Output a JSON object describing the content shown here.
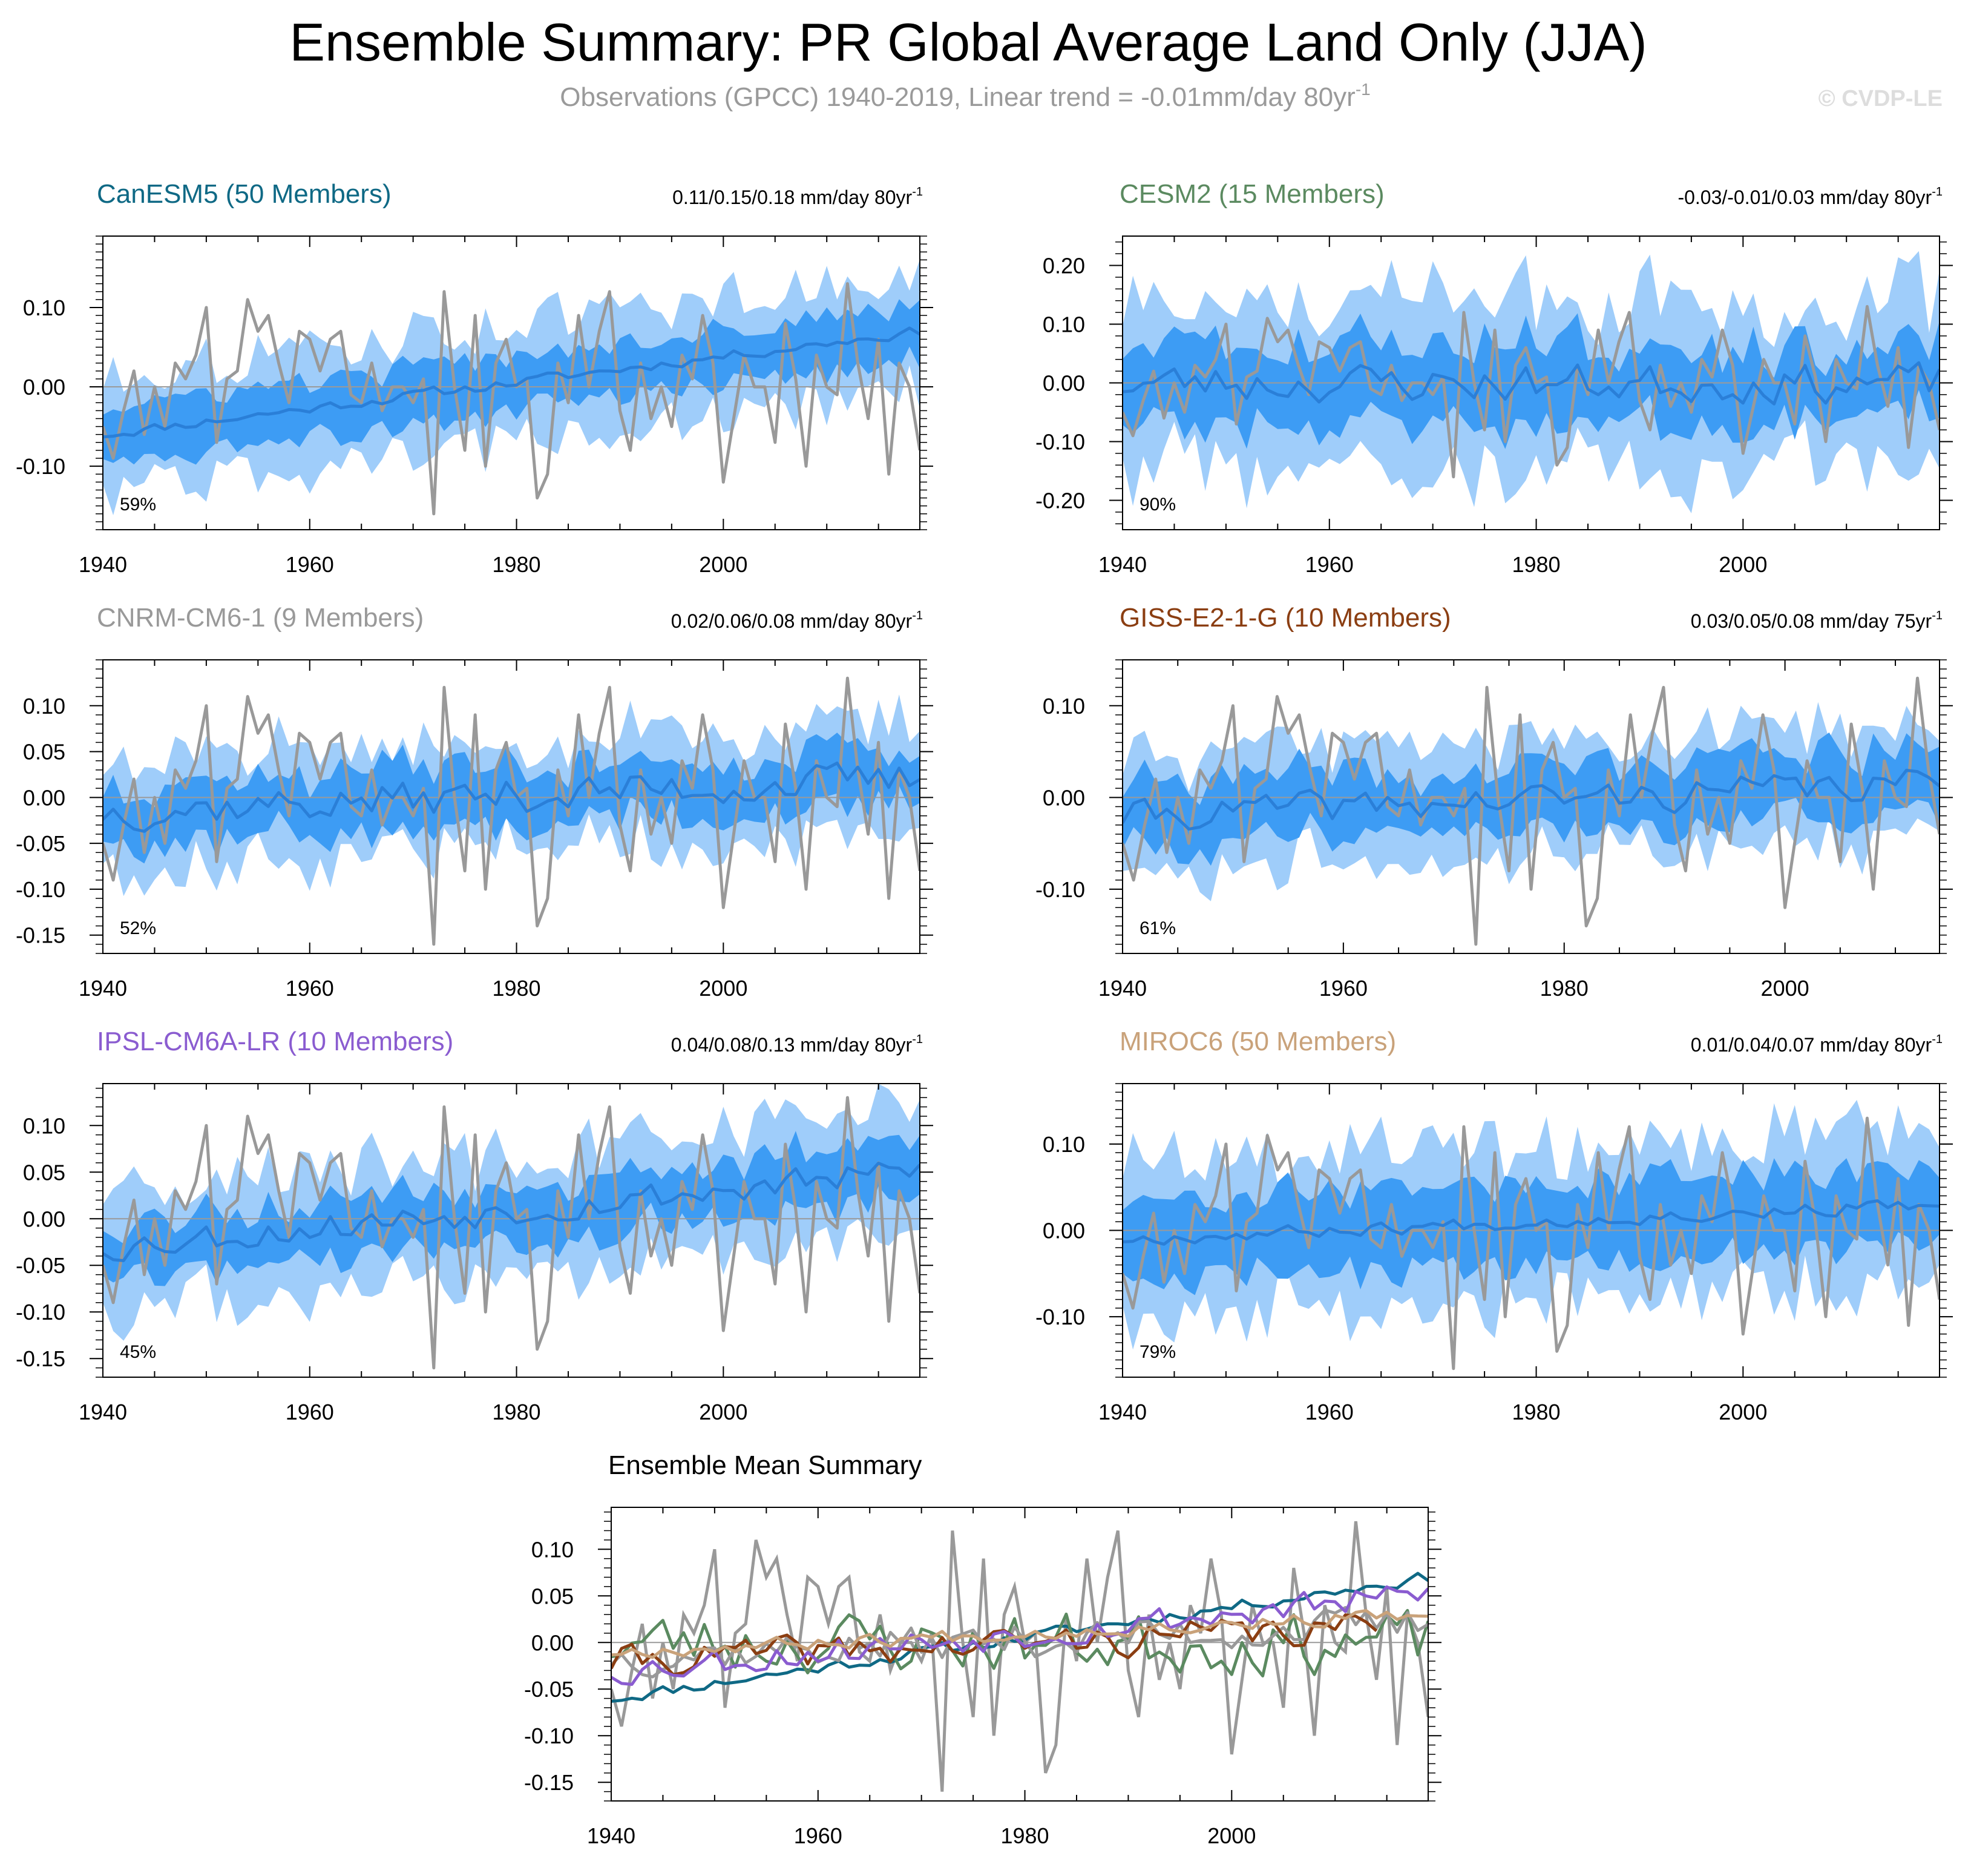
{
  "page": {
    "title": "Ensemble Summary: PR Global Average Land Only (JJA)",
    "subtitle_main": "Observations (GPCC) 1940-2019, Linear trend = -0.01mm/day 80yr",
    "subtitle_sup": "-1",
    "watermark": "© CVDP-LE"
  },
  "style": {
    "title_color": "#000000",
    "subtitle_color": "#9a9a9a",
    "watermark_color": "#dddddd",
    "obs_color": "#999999",
    "spread_outer_color": "#9fcdfa",
    "spread_inner_color": "#3d9cf4",
    "ensemble_mean_color": "#2a7fd8",
    "zero_line_color": "#9a9a9a"
  },
  "chart_data": [
    {
      "id": "canesm5",
      "type": "line",
      "title": "CanESM5 (50 Members)",
      "title_color": "#0f6985",
      "trend_text": "0.11/0.15/0.18 mm/day 80yr",
      "trend_sup": "-1",
      "pct_label": "59%",
      "x_start": 1940,
      "x_end": 2019,
      "xlim": [
        1940,
        2019
      ],
      "ylim": [
        -0.18,
        0.19
      ],
      "xticks": [
        1940,
        1960,
        1980,
        2000
      ],
      "xtick_labels": [
        "1940",
        "1960",
        "1980",
        "2000"
      ],
      "yticks": [
        -0.1,
        0.0,
        0.1
      ],
      "ytick_labels": [
        "-0.10",
        "0.00",
        "0.10"
      ],
      "mean_start": -0.06,
      "mean_trend": 0.13,
      "mean_var": 0.006,
      "spread_inner": 0.035,
      "spread_outer": 0.075
    },
    {
      "id": "cesm2",
      "type": "line",
      "title": "CESM2 (15 Members)",
      "title_color": "#5b8a60",
      "trend_text": "-0.03/-0.01/0.03 mm/day 80yr",
      "trend_sup": "-1",
      "pct_label": "90%",
      "x_start": 1940,
      "x_end": 2019,
      "xlim": [
        1940,
        2019
      ],
      "ylim": [
        -0.25,
        0.25
      ],
      "xticks": [
        1940,
        1960,
        1980,
        2000
      ],
      "xtick_labels": [
        "1940",
        "1960",
        "1980",
        "2000"
      ],
      "yticks": [
        -0.2,
        -0.1,
        0.0,
        0.1,
        0.2
      ],
      "ytick_labels": [
        "-0.20",
        "-0.10",
        "0.00",
        "0.10",
        "0.20"
      ],
      "mean_start": 0.0,
      "mean_trend": 0.0,
      "mean_var": 0.03,
      "spread_inner": 0.07,
      "spread_outer": 0.14
    },
    {
      "id": "cnrm",
      "type": "line",
      "title": "CNRM-CM6-1 (9 Members)",
      "title_color": "#999999",
      "trend_text": "0.02/0.06/0.08 mm/day 80yr",
      "trend_sup": "-1",
      "pct_label": "52%",
      "x_start": 1940,
      "x_end": 2019,
      "xlim": [
        1940,
        2019
      ],
      "ylim": [
        -0.17,
        0.15
      ],
      "xticks": [
        1940,
        1960,
        1980,
        2000
      ],
      "xtick_labels": [
        "1940",
        "1960",
        "1980",
        "2000"
      ],
      "yticks": [
        -0.15,
        -0.1,
        -0.05,
        0.0,
        0.05,
        0.1
      ],
      "ytick_labels": [
        "-0.15",
        "-0.10",
        "-0.05",
        "0.00",
        "0.05",
        "0.10"
      ],
      "mean_start": -0.015,
      "mean_trend": 0.035,
      "mean_var": 0.018,
      "spread_inner": 0.03,
      "spread_outer": 0.06
    },
    {
      "id": "giss",
      "type": "line",
      "title": "GISS-E2-1-G (10 Members)",
      "title_color": "#8b3e12",
      "trend_text": "0.03/0.05/0.08 mm/day 75yr",
      "trend_sup": "-1",
      "pct_label": "61%",
      "x_start": 1940,
      "x_end": 2014,
      "xlim": [
        1940,
        2014
      ],
      "ylim": [
        -0.17,
        0.15
      ],
      "xticks": [
        1940,
        1960,
        1980,
        2000
      ],
      "xtick_labels": [
        "1940",
        "1960",
        "1980",
        "2000"
      ],
      "yticks": [
        -0.1,
        0.0,
        0.1
      ],
      "ytick_labels": [
        "-0.10",
        "0.00",
        "0.10"
      ],
      "mean_start": -0.02,
      "mean_trend": 0.035,
      "mean_var": 0.016,
      "spread_inner": 0.035,
      "spread_outer": 0.065
    },
    {
      "id": "ipsl",
      "type": "line",
      "title": "IPSL-CM6A-LR (10 Members)",
      "title_color": "#8a5cd0",
      "trend_text": "0.04/0.08/0.13 mm/day 80yr",
      "trend_sup": "-1",
      "pct_label": "45%",
      "x_start": 1940,
      "x_end": 2019,
      "xlim": [
        1940,
        2019
      ],
      "ylim": [
        -0.17,
        0.145
      ],
      "xticks": [
        1940,
        1960,
        1980,
        2000
      ],
      "xtick_labels": [
        "1940",
        "1960",
        "1980",
        "2000"
      ],
      "yticks": [
        -0.15,
        -0.1,
        -0.05,
        0.0,
        0.05,
        0.1
      ],
      "ytick_labels": [
        "-0.15",
        "-0.10",
        "-0.05",
        "0.00",
        "0.05",
        "0.10"
      ],
      "mean_start": -0.03,
      "mean_trend": 0.08,
      "mean_var": 0.015,
      "spread_inner": 0.03,
      "spread_outer": 0.065
    },
    {
      "id": "miroc6",
      "type": "line",
      "title": "MIROC6 (50 Members)",
      "title_color": "#c9a27a",
      "trend_text": "0.01/0.04/0.07 mm/day 80yr",
      "trend_sup": "-1",
      "pct_label": "79%",
      "x_start": 1940,
      "x_end": 2019,
      "xlim": [
        1940,
        2019
      ],
      "ylim": [
        -0.17,
        0.17
      ],
      "xticks": [
        1940,
        1960,
        1980,
        2000
      ],
      "xtick_labels": [
        "1940",
        "1960",
        "1980",
        "2000"
      ],
      "yticks": [
        -0.1,
        0.0,
        0.1
      ],
      "ytick_labels": [
        "-0.10",
        "0.00",
        "0.10"
      ],
      "mean_start": -0.01,
      "mean_trend": 0.04,
      "mean_var": 0.007,
      "spread_inner": 0.045,
      "spread_outer": 0.09
    },
    {
      "id": "summary",
      "type": "line",
      "title": "Ensemble Mean Summary",
      "title_color": "#000000",
      "x_start": 1940,
      "x_end": 2019,
      "xlim": [
        1940,
        2019
      ],
      "ylim": [
        -0.17,
        0.145
      ],
      "xticks": [
        1940,
        1960,
        1980,
        2000
      ],
      "xtick_labels": [
        "1940",
        "1960",
        "1980",
        "2000"
      ],
      "yticks": [
        -0.15,
        -0.1,
        -0.05,
        0.0,
        0.05,
        0.1
      ],
      "ytick_labels": [
        "-0.15",
        "-0.10",
        "-0.05",
        "0.00",
        "0.05",
        "0.10"
      ],
      "series_colors": [
        "#0f6985",
        "#5b8a60",
        "#999999",
        "#8b3e12",
        "#8a5cd0",
        "#c9a27a"
      ]
    }
  ],
  "observations": {
    "name": "GPCC",
    "years": [
      1940,
      2019
    ],
    "values": [
      -0.05,
      -0.09,
      -0.03,
      0.02,
      -0.06,
      0.0,
      -0.05,
      0.03,
      0.01,
      0.04,
      0.1,
      -0.07,
      0.01,
      0.02,
      0.11,
      0.07,
      0.09,
      0.03,
      -0.02,
      0.07,
      0.06,
      0.02,
      0.06,
      0.07,
      -0.01,
      -0.02,
      0.03,
      -0.03,
      0.0,
      0.0,
      -0.02,
      0.01,
      -0.16,
      0.12,
      0.0,
      -0.08,
      0.09,
      -0.1,
      0.03,
      0.06,
      0.0,
      0.01,
      -0.14,
      -0.11,
      0.03,
      -0.02,
      0.09,
      0.0,
      0.07,
      0.12,
      -0.03,
      -0.08,
      0.03,
      -0.04,
      0.0,
      -0.05,
      0.04,
      0.01,
      0.09,
      0.03,
      -0.12,
      -0.04,
      0.04,
      0.0,
      0.0,
      -0.07,
      0.08,
      0.01,
      -0.1,
      0.04,
      0.0,
      -0.01,
      0.13,
      0.03,
      -0.04,
      0.06,
      -0.11,
      0.03,
      0.0,
      -0.08
    ]
  }
}
